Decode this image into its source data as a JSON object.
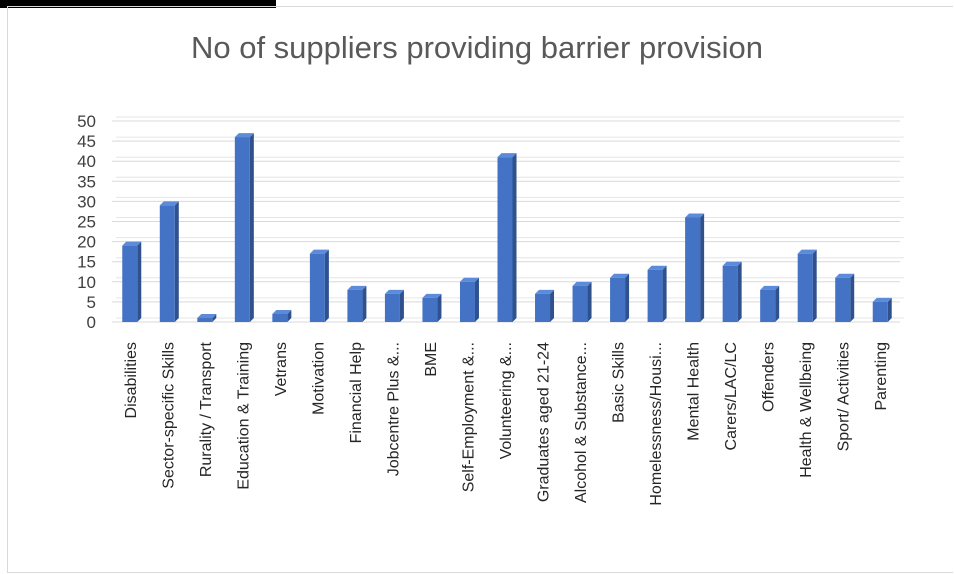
{
  "chart_data": {
    "type": "bar",
    "title": "No of suppliers providing barrier provision",
    "xlabel": "",
    "ylabel": "",
    "ylim": [
      0,
      50
    ],
    "yticks": [
      "0",
      "5",
      "10",
      "15",
      "20",
      "25",
      "30",
      "35",
      "40",
      "45",
      "50"
    ],
    "grid": true,
    "bar_color": "#4472c4",
    "categories": [
      "Disabilities",
      "Sector-specific Skills",
      "Rurality / Transport",
      "Education & Training",
      "Vetrans",
      "Motivation",
      "Financial Help",
      "Jobcentre Plus &...",
      "BME",
      "Self-Employment &...",
      "Volunteering &...",
      "Graduates aged 21-24",
      "Alcohol & Substance...",
      "Basic Skills",
      "Homelessness/Housi...",
      "Mental Health",
      "Carers/LAC/LC",
      "Offenders",
      "Health & Wellbeing",
      "Sport/ Activities",
      "Parenting"
    ],
    "values": [
      19,
      29,
      1,
      46,
      2,
      17,
      8,
      7,
      6,
      10,
      41,
      7,
      9,
      11,
      13,
      26,
      14,
      8,
      17,
      11,
      5
    ]
  }
}
